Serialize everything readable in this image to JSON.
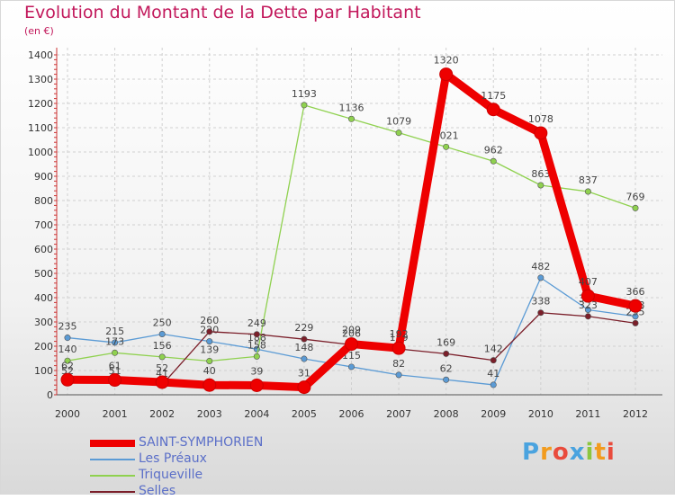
{
  "chart_data": {
    "type": "line",
    "title": "Evolution du Montant de la Dette par Habitant",
    "subtitle": "(en €)",
    "xlabel": "",
    "ylabel": "",
    "ylim": [
      0,
      1400
    ],
    "yticks": [
      0,
      100,
      200,
      300,
      400,
      500,
      600,
      700,
      800,
      900,
      1000,
      1100,
      1200,
      1300,
      1400
    ],
    "x": [
      "2000",
      "2001",
      "2002",
      "2003",
      "2004",
      "2005",
      "2006",
      "2007",
      "2008",
      "2009",
      "2010",
      "2011",
      "2012"
    ],
    "grid": true,
    "legend_position": "bottom-left",
    "series": [
      {
        "name": "Les Préaux",
        "color": "#5b9bd5",
        "values": [
          235,
          215,
          250,
          220,
          188,
          148,
          115,
          82,
          62,
          41,
          482,
          350,
          323
        ]
      },
      {
        "name": "Triqueville",
        "color": "#8fd14f",
        "values": [
          140,
          173,
          156,
          139,
          158,
          1193,
          1136,
          1079,
          1021,
          962,
          863,
          837,
          769
        ]
      },
      {
        "name": "Selles",
        "color": "#7b1f2a",
        "values": [
          52,
          51,
          41,
          260,
          249,
          229,
          206,
          189,
          169,
          142,
          338,
          323,
          295
        ]
      },
      {
        "name": "SAINT-SYMPHORIEN",
        "color": "#ee0000",
        "values": [
          62,
          61,
          52,
          40,
          39,
          31,
          209,
          192,
          1320,
          1175,
          1078,
          407,
          366
        ]
      }
    ]
  },
  "legend": [
    {
      "name": "SAINT-SYMPHORIEN",
      "color": "#ee0000"
    },
    {
      "name": "Les Préaux",
      "color": "#5b9bd5"
    },
    {
      "name": "Triqueville",
      "color": "#8fd14f"
    },
    {
      "name": "Selles",
      "color": "#7b1f2a"
    }
  ],
  "brand": {
    "text": "Proxiti",
    "letters": [
      {
        "ch": "P",
        "color": "#4aa3df"
      },
      {
        "ch": "r",
        "color": "#f29b1d"
      },
      {
        "ch": "o",
        "color": "#e94b3c"
      },
      {
        "ch": "x",
        "color": "#4aa3df"
      },
      {
        "ch": "i",
        "color": "#8cc63f"
      },
      {
        "ch": "t",
        "color": "#f29b1d"
      },
      {
        "ch": "i",
        "color": "#e94b3c"
      }
    ]
  }
}
